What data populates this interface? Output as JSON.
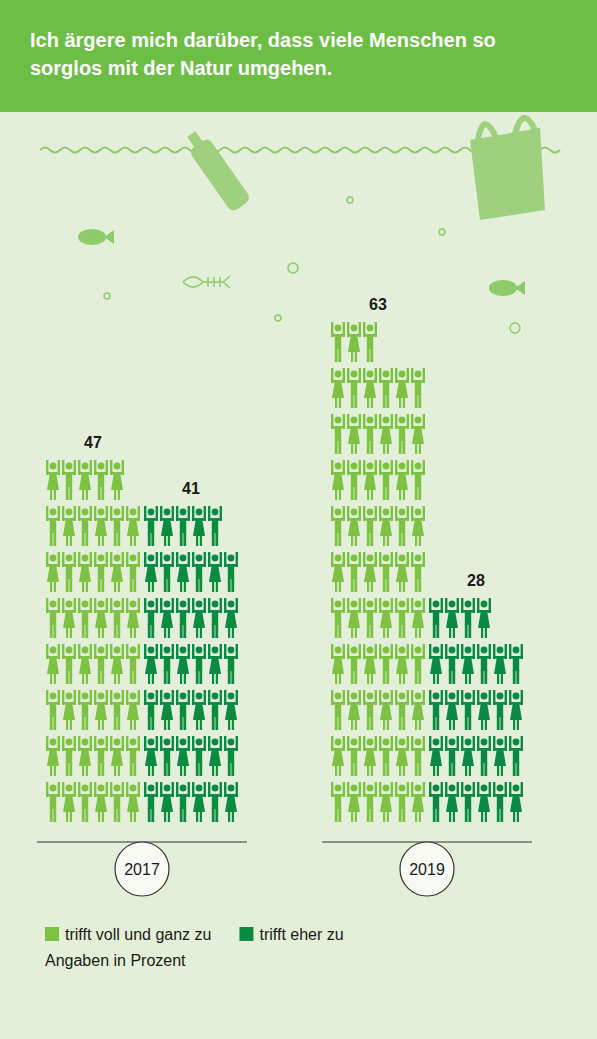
{
  "chart_data": {
    "type": "bar",
    "title": "Ich ärgere mich darüber, dass viele Menschen so sorglos mit der Natur umgehen.",
    "note": "Angaben in Prozent",
    "categories": [
      "2017",
      "2019"
    ],
    "series": [
      {
        "name": "trifft voll und ganz zu",
        "color": "#7dc243",
        "values": [
          47,
          63
        ]
      },
      {
        "name": "trifft eher zu",
        "color": "#0b8a43",
        "values": [
          41,
          28
        ]
      }
    ],
    "data_labels": true,
    "legend": "bottom"
  }
}
